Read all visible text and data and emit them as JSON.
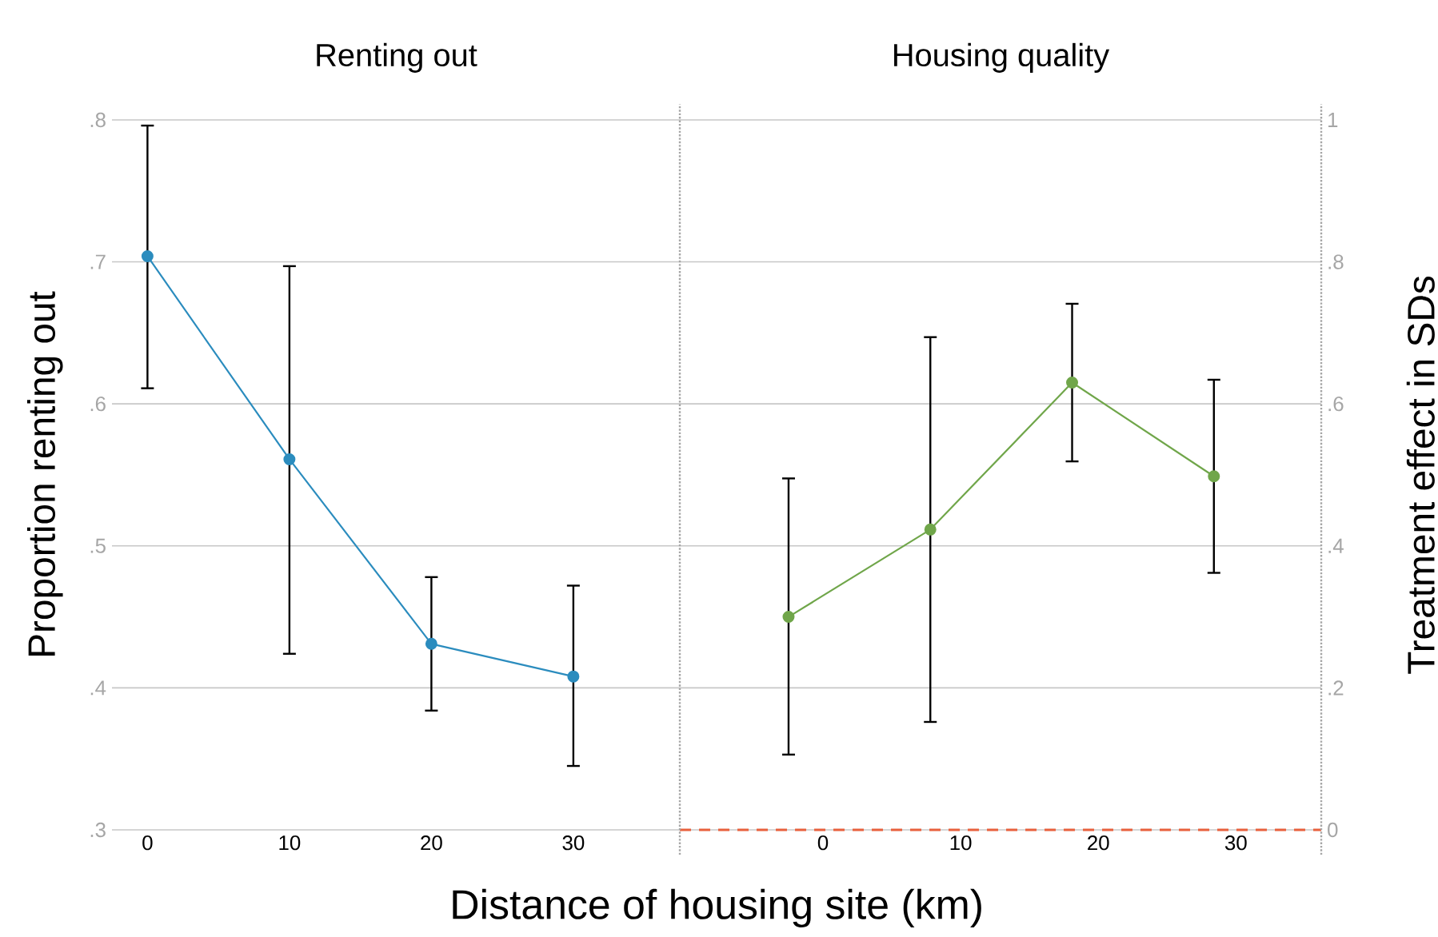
{
  "chart_data": [
    {
      "type": "line",
      "title": "Renting out",
      "xlabel": "Distance of housing site (km)",
      "ylabel": "Proportion renting out",
      "x": [
        0,
        10,
        20,
        30
      ],
      "values": [
        0.704,
        0.561,
        0.431,
        0.408
      ],
      "color": "#2b8cbe",
      "errors": [
        [
          0.611,
          0.796
        ],
        [
          0.424,
          0.697
        ],
        [
          0.384,
          0.478
        ],
        [
          0.345,
          0.472
        ]
      ],
      "xlim": [
        -2.5,
        37.5
      ],
      "xticks": [
        0,
        10,
        20,
        30
      ],
      "ylim": [
        0.3,
        0.8
      ],
      "yticks": [
        {
          "value": 0.3,
          "label": ".3"
        },
        {
          "value": 0.4,
          "label": ".4"
        },
        {
          "value": 0.5,
          "label": ".5"
        },
        {
          "value": 0.6,
          "label": ".6"
        },
        {
          "value": 0.7,
          "label": ".7"
        },
        {
          "value": 0.8,
          "label": ".8"
        }
      ],
      "grid": "y",
      "marker": "circle"
    },
    {
      "type": "line",
      "title": "Housing quality",
      "ylabel": "Treatment effect in SDs",
      "x": [
        -2.5,
        7.8,
        18.1,
        28.4
      ],
      "values": [
        0.3,
        0.423,
        0.63,
        0.498
      ],
      "color": "#70a64a",
      "errors": [
        [
          0.106,
          0.495
        ],
        [
          0.152,
          0.694
        ],
        [
          0.519,
          0.741
        ],
        [
          0.362,
          0.634
        ]
      ],
      "xlim": [
        -10.4,
        36.2
      ],
      "xticks": [
        0,
        10,
        20,
        30
      ],
      "ylim": [
        0,
        1
      ],
      "yticks": [
        0,
        {
          "value": 0.2,
          "label": ".2"
        },
        {
          "value": 0.4,
          "label": ".4"
        },
        {
          "value": 0.6,
          "label": ".6"
        },
        {
          "value": 0.8,
          "label": ".8"
        },
        1
      ],
      "grid": "y",
      "marker": "circle",
      "ref_lines": [
        {
          "axis": "y",
          "value": 0,
          "color": "#e8603c",
          "line_style": "dashed"
        }
      ]
    }
  ]
}
